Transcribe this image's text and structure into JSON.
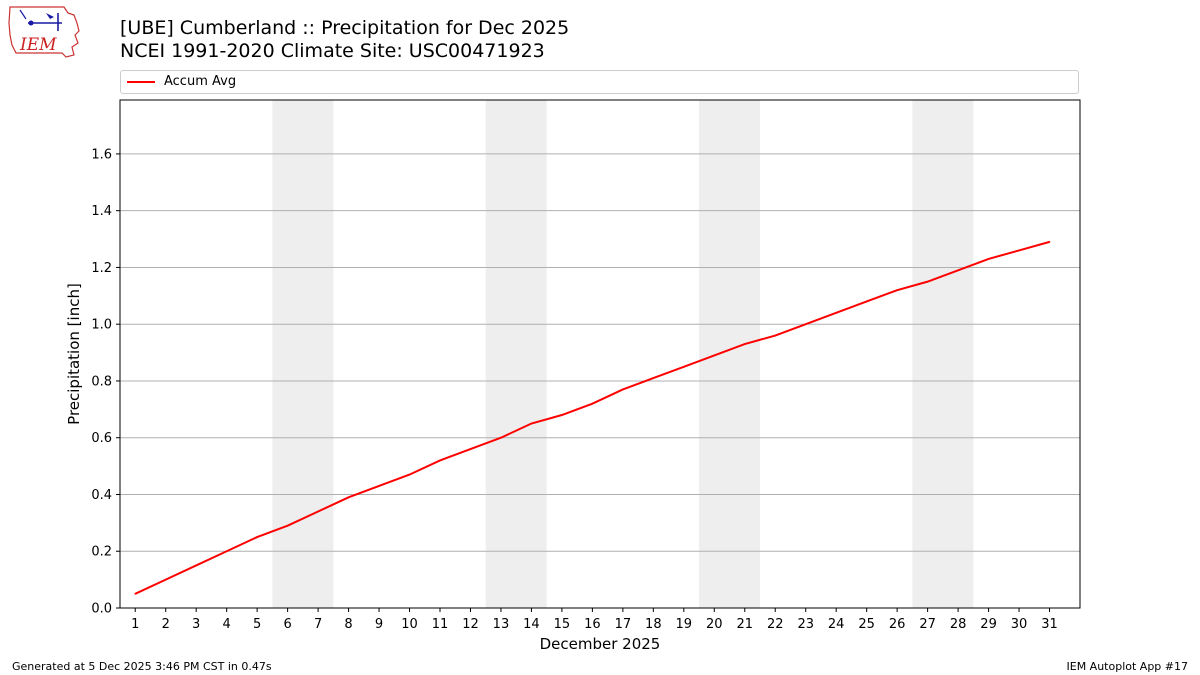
{
  "title_line1": "[UBE] Cumberland :: Precipitation for Dec 2025",
  "title_line2": "NCEI 1991-2020 Climate Site: USC00471923",
  "footer_left": "Generated at 5 Dec 2025 3:46 PM CST in 0.47s",
  "footer_right": "IEM Autoplot App #17",
  "logo_text": "IEM",
  "colors": {
    "series": "#ff0000",
    "weekend_band": "#eeeeee",
    "grid": "#b0b0b0"
  },
  "chart_data": {
    "type": "line",
    "xlabel": "December 2025",
    "ylabel": "Precipitation [inch]",
    "xlim": [
      0.5,
      32
    ],
    "ylim": [
      0,
      1.79
    ],
    "y_ticks": [
      0.0,
      0.2,
      0.4,
      0.6,
      0.8,
      1.0,
      1.2,
      1.4,
      1.6
    ],
    "y_tick_labels": [
      "0.0",
      "0.2",
      "0.4",
      "0.6",
      "0.8",
      "1.0",
      "1.2",
      "1.4",
      "1.6"
    ],
    "x": [
      1,
      2,
      3,
      4,
      5,
      6,
      7,
      8,
      9,
      10,
      11,
      12,
      13,
      14,
      15,
      16,
      17,
      18,
      19,
      20,
      21,
      22,
      23,
      24,
      25,
      26,
      27,
      28,
      29,
      30,
      31
    ],
    "x_tick_labels": [
      "1",
      "2",
      "3",
      "4",
      "5",
      "6",
      "7",
      "8",
      "9",
      "10",
      "11",
      "12",
      "13",
      "14",
      "15",
      "16",
      "17",
      "18",
      "19",
      "20",
      "21",
      "22",
      "23",
      "24",
      "25",
      "26",
      "27",
      "28",
      "29",
      "30",
      "31"
    ],
    "grid": "horizontal",
    "weekend_bands": [
      [
        5.5,
        7.5
      ],
      [
        12.5,
        14.5
      ],
      [
        19.5,
        21.5
      ],
      [
        26.5,
        28.5
      ]
    ],
    "legend_position": "top",
    "series": [
      {
        "name": "Accum Avg",
        "values": [
          0.05,
          0.1,
          0.15,
          0.2,
          0.25,
          0.29,
          0.34,
          0.39,
          0.43,
          0.47,
          0.52,
          0.56,
          0.6,
          0.65,
          0.68,
          0.72,
          0.77,
          0.81,
          0.85,
          0.89,
          0.93,
          0.96,
          1.0,
          1.04,
          1.08,
          1.12,
          1.15,
          1.19,
          1.23,
          1.26,
          1.29
        ]
      }
    ]
  }
}
